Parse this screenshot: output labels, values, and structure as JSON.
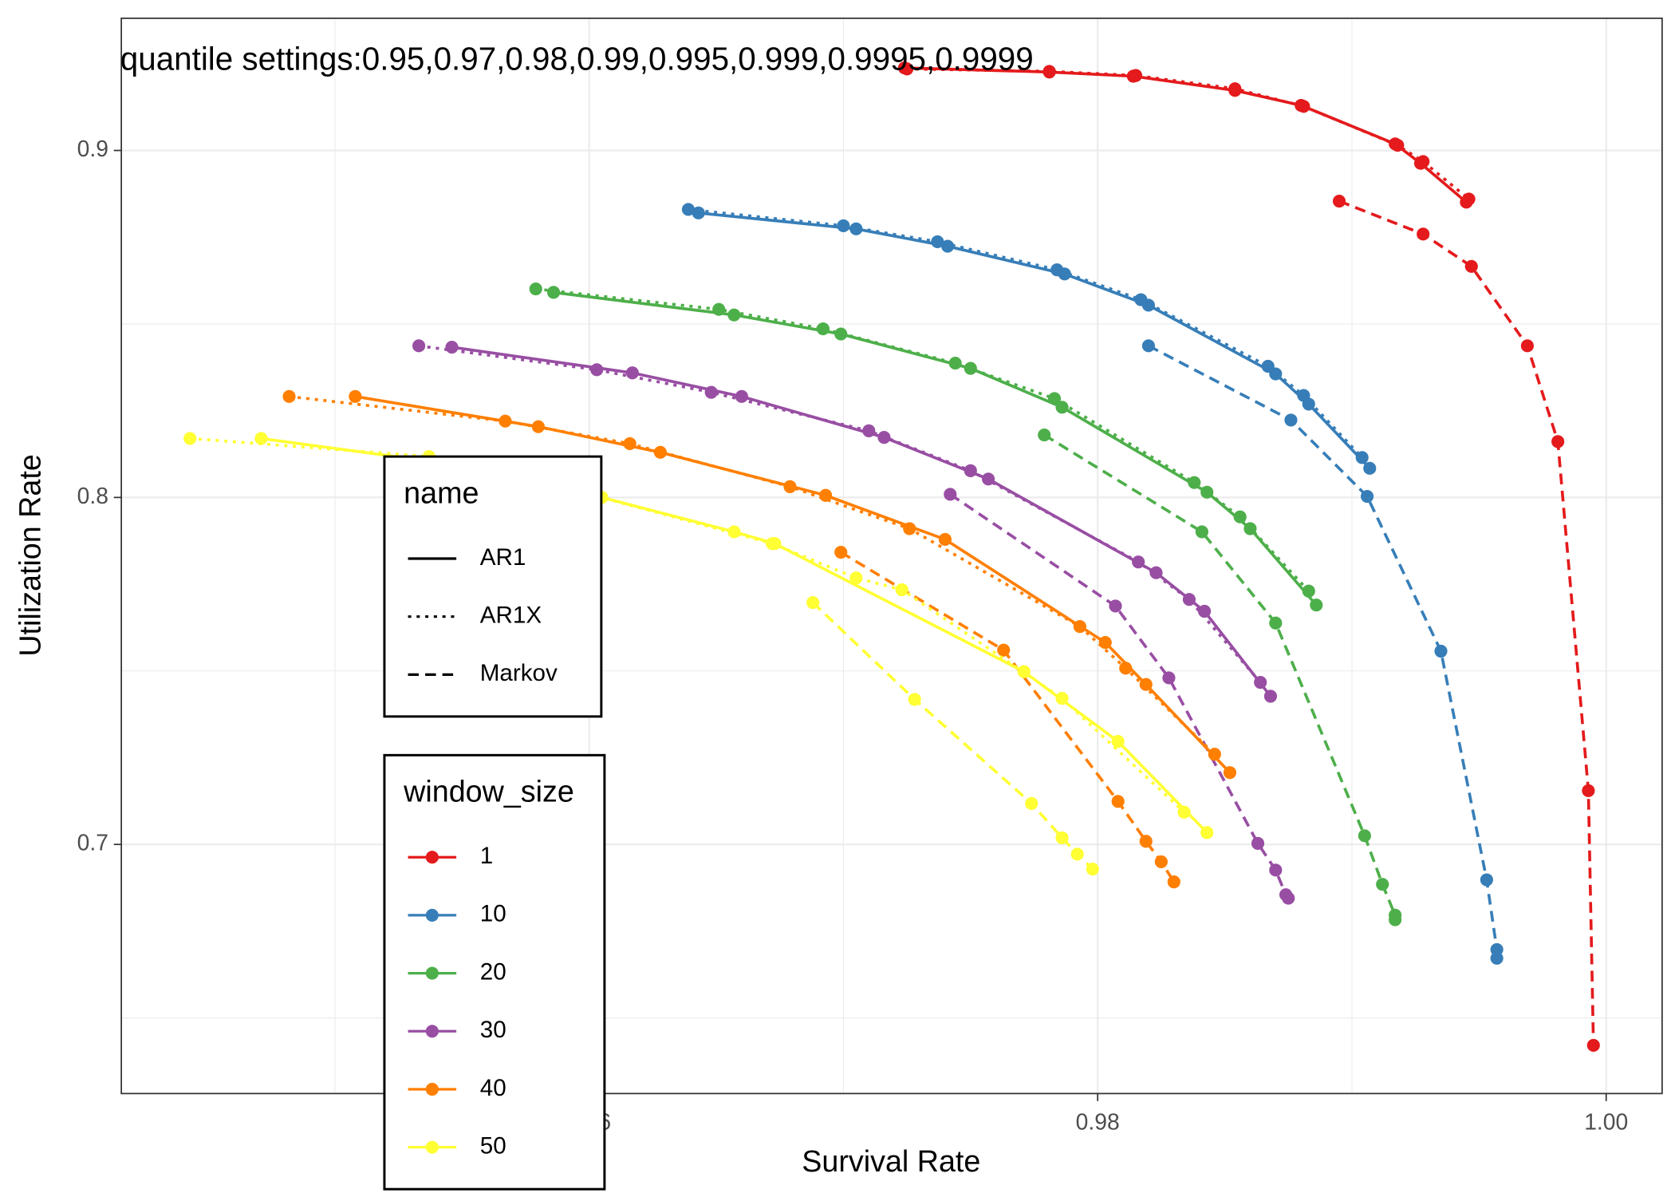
{
  "chart_data": {
    "type": "line",
    "annotation": "quantile settings:0.95,0.97,0.98,0.99,0.995,0.999,0.9995,0.9999",
    "x_label": "Survival Rate",
    "y_label": "Utilization Rate",
    "legend_titles": [
      "name",
      "window_size"
    ],
    "xlim": [
      0.9416,
      1.0022
    ],
    "ylim": [
      0.6282,
      0.9381
    ],
    "xticks": [
      0.96,
      0.98,
      {
        "value": 1,
        "label": "1.00"
      }
    ],
    "yticks": [
      0.7,
      0.8,
      0.9
    ],
    "x_minor_ticks": [
      0.95,
      0.97,
      0.99
    ],
    "y_minor_ticks": [
      0.65,
      0.75,
      0.85
    ],
    "grid": true,
    "series": [
      {
        "name": "AR1",
        "window_size": "1",
        "color": "#e41a1c",
        "dash": "solid",
        "x": [
          0.9724,
          0.9781,
          0.9814,
          0.9854,
          0.988,
          0.9917,
          0.9927,
          0.9945
        ],
        "y": [
          0.9238,
          0.9226,
          0.9214,
          0.9173,
          0.913,
          0.9019,
          0.8963,
          0.8851
        ]
      },
      {
        "name": "AR1X",
        "window_size": "1",
        "color": "#e41a1c",
        "dash": "dotted",
        "x": [
          0.9725,
          0.9781,
          0.9815,
          0.9854,
          0.9881,
          0.9918,
          0.9928,
          0.9946
        ],
        "y": [
          0.9235,
          0.9228,
          0.9216,
          0.9178,
          0.9127,
          0.9015,
          0.8968,
          0.886
        ]
      },
      {
        "name": "Markov",
        "window_size": "1",
        "color": "#e41a1c",
        "dash": "dashed",
        "x": [
          0.9895,
          0.9928,
          0.9947,
          0.9969,
          0.9981,
          0.9993,
          0.9995
        ],
        "y": [
          0.8854,
          0.8759,
          0.8666,
          0.8437,
          0.8161,
          0.7155,
          0.6421
        ]
      },
      {
        "name": "AR1",
        "window_size": "10",
        "color": "#377eb8",
        "dash": "solid",
        "x": [
          0.9643,
          0.9705,
          0.9741,
          0.9787,
          0.982,
          0.987,
          0.9883,
          0.9907
        ],
        "y": [
          0.882,
          0.8774,
          0.8724,
          0.8644,
          0.8554,
          0.8356,
          0.8269,
          0.8084
        ]
      },
      {
        "name": "AR1X",
        "window_size": "10",
        "color": "#377eb8",
        "dash": "dotted",
        "x": [
          0.9639,
          0.97,
          0.9737,
          0.9784,
          0.9817,
          0.9867,
          0.9881,
          0.9904
        ],
        "y": [
          0.883,
          0.8783,
          0.8737,
          0.8656,
          0.857,
          0.8378,
          0.8294,
          0.8115
        ]
      },
      {
        "name": "Markov",
        "window_size": "10",
        "color": "#377eb8",
        "dash": "dashed",
        "x": [
          0.982,
          0.9876,
          0.9906,
          0.9935,
          0.9953,
          0.9957,
          0.9957
        ],
        "y": [
          0.8437,
          0.8223,
          0.8003,
          0.7557,
          0.6898,
          0.6697,
          0.6672
        ]
      },
      {
        "name": "AR1",
        "window_size": "20",
        "color": "#4daf4a",
        "dash": "solid",
        "x": [
          0.9586,
          0.9657,
          0.9699,
          0.975,
          0.9786,
          0.9843,
          0.986,
          0.9886
        ],
        "y": [
          0.8591,
          0.8526,
          0.8471,
          0.8372,
          0.826,
          0.8015,
          0.791,
          0.769
        ]
      },
      {
        "name": "AR1X",
        "window_size": "20",
        "color": "#4daf4a",
        "dash": "dotted",
        "x": [
          0.9579,
          0.9651,
          0.9692,
          0.9744,
          0.9783,
          0.9838,
          0.9856,
          0.9883
        ],
        "y": [
          0.8601,
          0.8542,
          0.8486,
          0.8387,
          0.8285,
          0.8043,
          0.7944,
          0.773
        ]
      },
      {
        "name": "Markov",
        "window_size": "20",
        "color": "#4daf4a",
        "dash": "dashed",
        "x": [
          0.9779,
          0.9841,
          0.987,
          0.9905,
          0.9912,
          0.9917,
          0.9917
        ],
        "y": [
          0.818,
          0.7901,
          0.7638,
          0.7025,
          0.6885,
          0.6796,
          0.6783
        ]
      },
      {
        "name": "AR1",
        "window_size": "30",
        "color": "#984ea3",
        "dash": "solid",
        "x": [
          0.9546,
          0.9617,
          0.966,
          0.9716,
          0.9757,
          0.9823,
          0.9842,
          0.9868
        ],
        "y": [
          0.8433,
          0.8359,
          0.8291,
          0.8173,
          0.8053,
          0.7783,
          0.7672,
          0.7427
        ]
      },
      {
        "name": "AR1X",
        "window_size": "30",
        "color": "#984ea3",
        "dash": "dotted",
        "x": [
          0.9533,
          0.9603,
          0.9648,
          0.971,
          0.975,
          0.9816,
          0.9836,
          0.9864
        ],
        "y": [
          0.8437,
          0.8368,
          0.8303,
          0.8192,
          0.8077,
          0.7814,
          0.7706,
          0.7467
        ]
      },
      {
        "name": "Markov",
        "window_size": "30",
        "color": "#984ea3",
        "dash": "dashed",
        "x": [
          0.9742,
          0.9807,
          0.9828,
          0.9863,
          0.987,
          0.9874,
          0.9875
        ],
        "y": [
          0.8009,
          0.7687,
          0.748,
          0.7003,
          0.6926,
          0.6855,
          0.6845
        ]
      },
      {
        "name": "AR1",
        "window_size": "40",
        "color": "#ff7f00",
        "dash": "solid",
        "x": [
          0.9508,
          0.958,
          0.9628,
          0.9693,
          0.974,
          0.9803,
          0.9819,
          0.9852
        ],
        "y": [
          0.8291,
          0.8204,
          0.813,
          0.8006,
          0.7879,
          0.7582,
          0.7461,
          0.7207
        ]
      },
      {
        "name": "AR1X",
        "window_size": "40",
        "color": "#ff7f00",
        "dash": "dotted",
        "x": [
          0.9482,
          0.9567,
          0.9616,
          0.9679,
          0.9726,
          0.9793,
          0.9811,
          0.9846
        ],
        "y": [
          0.8291,
          0.822,
          0.8155,
          0.8031,
          0.791,
          0.7628,
          0.7508,
          0.726
        ]
      },
      {
        "name": "Markov",
        "window_size": "40",
        "color": "#ff7f00",
        "dash": "dashed",
        "x": [
          0.9699,
          0.9763,
          0.9808,
          0.9819,
          0.9825,
          0.983
        ],
        "y": [
          0.7842,
          0.756,
          0.7124,
          0.7009,
          0.695,
          0.6892
        ]
      },
      {
        "name": "AR1",
        "window_size": "50",
        "color": "#ffff33",
        "dash": "solid",
        "x": [
          0.9471,
          0.9571,
          0.9605,
          0.9657,
          0.9673,
          0.9771,
          0.9808,
          0.9843
        ],
        "y": [
          0.817,
          0.8071,
          0.8,
          0.7901,
          0.7867,
          0.7498,
          0.7297,
          0.7034
        ]
      },
      {
        "name": "AR1X",
        "window_size": "50",
        "color": "#ffff33",
        "dash": "dotted",
        "x": [
          0.9443,
          0.9537,
          0.9592,
          0.9672,
          0.9705,
          0.9723,
          0.9786,
          0.9834
        ],
        "y": [
          0.817,
          0.8118,
          0.8025,
          0.7867,
          0.7768,
          0.7734,
          0.7421,
          0.7093
        ]
      },
      {
        "name": "Markov",
        "window_size": "50",
        "color": "#ffff33",
        "dash": "dashed",
        "x": [
          0.9688,
          0.9728,
          0.9774,
          0.9786,
          0.9792,
          0.9798
        ],
        "y": [
          0.7697,
          0.7418,
          0.7118,
          0.7019,
          0.6972,
          0.6929
        ]
      }
    ]
  }
}
